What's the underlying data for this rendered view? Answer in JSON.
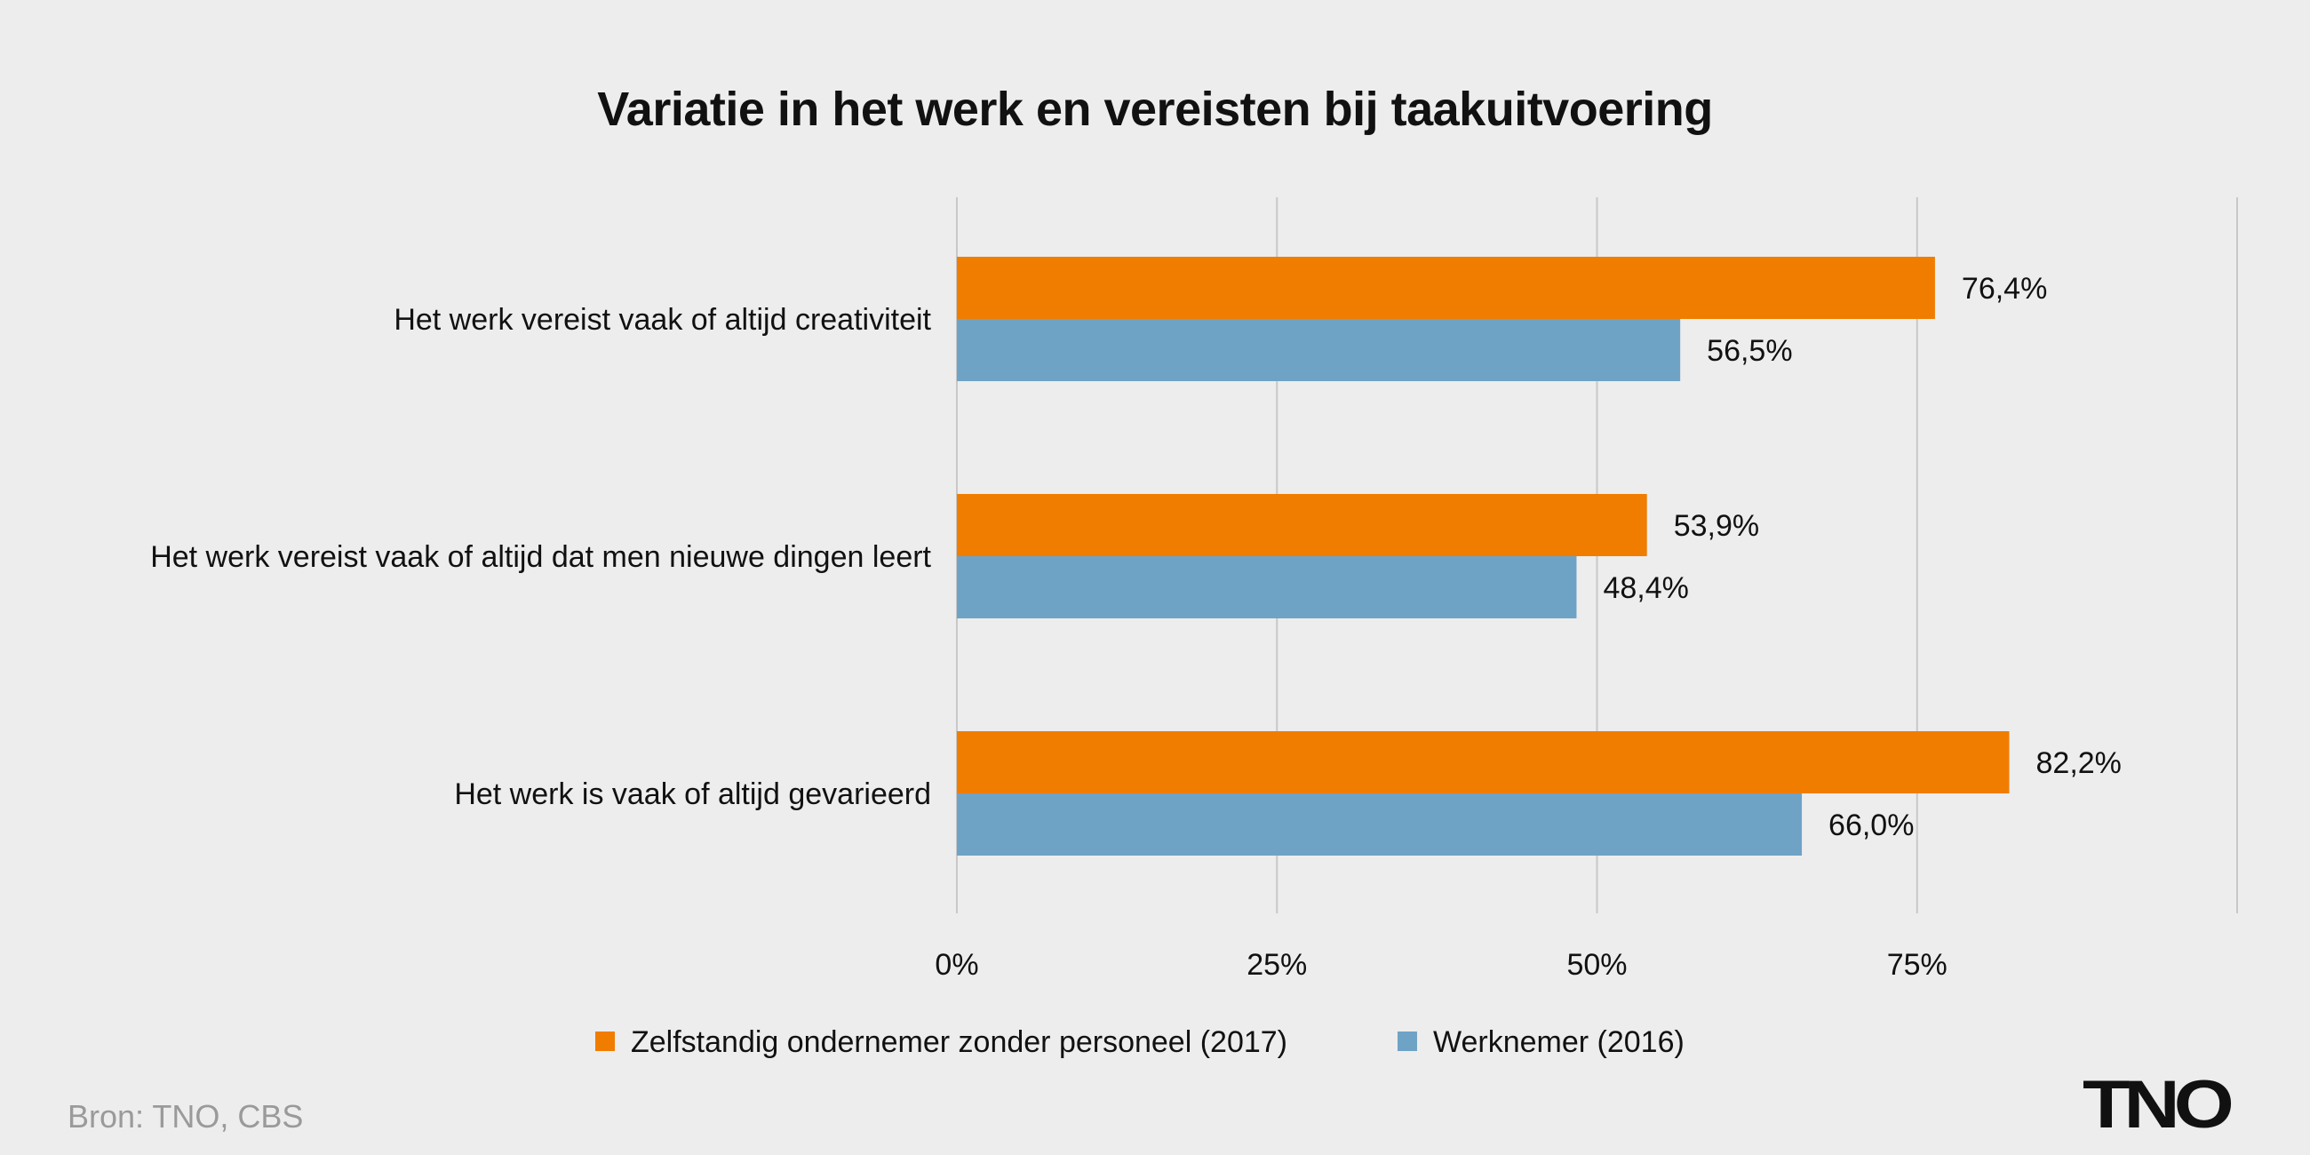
{
  "chart_data": {
    "type": "bar",
    "orientation": "horizontal",
    "title": "Variatie in het werk en vereisten bij taakuitvoering",
    "categories": [
      "Het werk vereist vaak of altijd creativiteit",
      "Het werk vereist vaak of altijd dat men nieuwe dingen leert",
      "Het werk is vaak of altijd gevarieerd"
    ],
    "series": [
      {
        "name": "Zelfstandig ondernemer zonder personeel (2017)",
        "values": [
          76.4,
          53.9,
          82.2
        ],
        "labels": [
          "76,4%",
          "53,9%",
          "82,2%"
        ],
        "color": "#f07d00"
      },
      {
        "name": "Werknemer (2016)",
        "values": [
          56.5,
          48.4,
          66.0
        ],
        "labels": [
          "56,5%",
          "48,4%",
          "66,0%"
        ],
        "color": "#6fa3c6"
      }
    ],
    "xlim": [
      0,
      100
    ],
    "x_ticks": [
      0,
      25,
      50,
      75
    ],
    "x_tick_labels": [
      "0%",
      "25%",
      "50%",
      "75%"
    ],
    "grid": true,
    "legend_position": "bottom"
  },
  "footer": {
    "source": "Bron: TNO, CBS",
    "logo_text": "TNO"
  }
}
